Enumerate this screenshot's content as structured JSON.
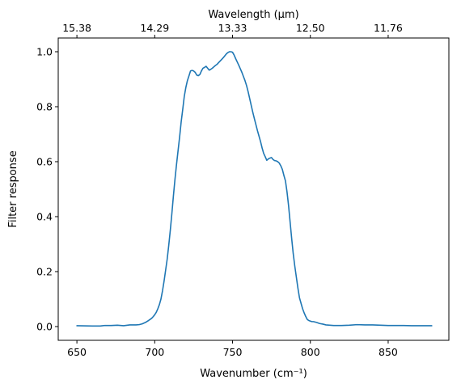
{
  "chart_data": {
    "type": "line",
    "xlabel": "Wavenumber (cm⁻¹)",
    "ylabel": "Filter response",
    "top_xlabel": "Wavelength (μm)",
    "xlim": [
      638,
      889
    ],
    "ylim": [
      -0.05,
      1.05
    ],
    "grid": false,
    "x_ticks": [
      650,
      700,
      750,
      800,
      850
    ],
    "x_tick_labels": [
      "650",
      "700",
      "750",
      "800",
      "850"
    ],
    "y_ticks": [
      0.0,
      0.2,
      0.4,
      0.6,
      0.8,
      1.0
    ],
    "y_tick_labels": [
      "0.0",
      "0.2",
      "0.4",
      "0.6",
      "0.8",
      "1.0"
    ],
    "top_ticks": [
      650,
      700,
      750,
      800,
      850
    ],
    "top_tick_labels": [
      "15.38",
      "14.29",
      "13.33",
      "12.50",
      "11.76"
    ],
    "line_color": "#1f77b4",
    "series": [
      {
        "x": [
          650,
          660,
          665,
          668,
          672,
          676,
          680,
          684,
          688,
          690,
          692,
          694,
          696,
          697,
          698,
          699,
          700,
          701,
          702,
          703,
          704,
          705,
          706,
          707,
          708,
          709,
          710,
          711,
          712,
          713,
          714,
          715,
          716,
          717,
          718,
          719,
          720,
          721,
          722,
          723,
          724,
          725,
          726,
          727,
          728,
          729,
          730,
          731,
          732,
          733,
          734,
          735,
          736,
          737,
          738,
          739,
          740,
          741,
          742,
          743,
          744,
          745,
          746,
          747,
          748,
          749,
          750,
          751,
          752,
          753,
          754,
          755,
          756,
          757,
          758,
          759,
          760,
          761,
          762,
          763,
          764,
          765,
          766,
          767,
          768,
          769,
          770,
          771,
          772,
          773,
          774,
          775,
          776,
          777,
          778,
          779,
          780,
          781,
          782,
          783,
          784,
          785,
          786,
          787,
          788,
          789,
          790,
          791,
          792,
          793,
          794,
          795,
          796,
          797,
          798,
          799,
          800,
          801,
          802,
          804,
          806,
          808,
          810,
          815,
          820,
          825,
          830,
          835,
          840,
          845,
          850,
          855,
          860,
          865,
          870,
          878
        ],
        "y": [
          0.003,
          0.002,
          0.002,
          0.004,
          0.004,
          0.005,
          0.003,
          0.006,
          0.006,
          0.007,
          0.01,
          0.015,
          0.022,
          0.026,
          0.03,
          0.036,
          0.043,
          0.052,
          0.065,
          0.08,
          0.1,
          0.13,
          0.165,
          0.205,
          0.245,
          0.295,
          0.35,
          0.41,
          0.475,
          0.535,
          0.59,
          0.64,
          0.69,
          0.745,
          0.79,
          0.838,
          0.87,
          0.895,
          0.912,
          0.93,
          0.932,
          0.93,
          0.925,
          0.915,
          0.913,
          0.917,
          0.93,
          0.94,
          0.943,
          0.947,
          0.94,
          0.933,
          0.936,
          0.94,
          0.945,
          0.95,
          0.954,
          0.96,
          0.966,
          0.972,
          0.978,
          0.985,
          0.992,
          0.997,
          1.0,
          1.0,
          0.998,
          0.988,
          0.975,
          0.963,
          0.951,
          0.938,
          0.925,
          0.91,
          0.895,
          0.877,
          0.855,
          0.83,
          0.805,
          0.78,
          0.757,
          0.735,
          0.713,
          0.693,
          0.673,
          0.65,
          0.63,
          0.618,
          0.605,
          0.61,
          0.613,
          0.615,
          0.608,
          0.604,
          0.603,
          0.6,
          0.595,
          0.585,
          0.572,
          0.55,
          0.53,
          0.49,
          0.44,
          0.38,
          0.32,
          0.265,
          0.22,
          0.18,
          0.14,
          0.105,
          0.085,
          0.065,
          0.05,
          0.037,
          0.026,
          0.022,
          0.02,
          0.018,
          0.018,
          0.015,
          0.011,
          0.009,
          0.006,
          0.004,
          0.004,
          0.005,
          0.007,
          0.006,
          0.006,
          0.005,
          0.004,
          0.004,
          0.004,
          0.003,
          0.003,
          0.003
        ]
      }
    ]
  }
}
